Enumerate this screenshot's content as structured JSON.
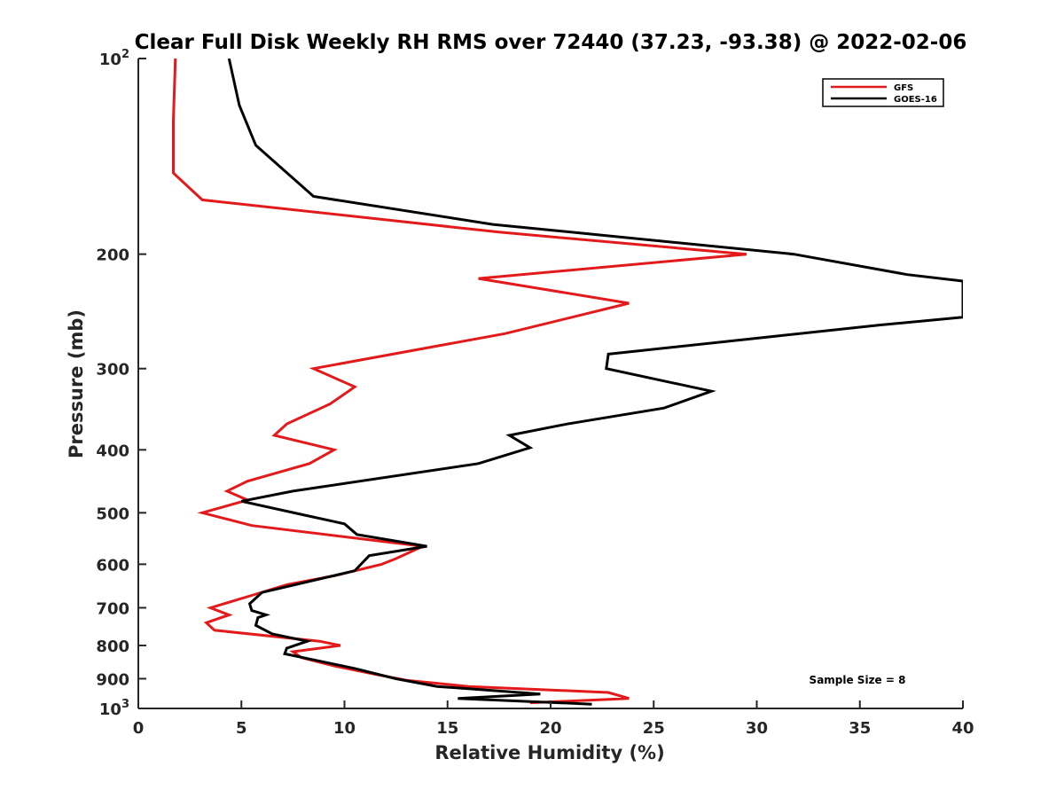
{
  "chart_data": {
    "type": "line",
    "title": "Clear Full Disk Weekly RH RMS over 72440 (37.23, -93.38) @ 2022-02-06",
    "xlabel": "Relative Humidity (%)",
    "ylabel": "Pressure (mb)",
    "xlim": [
      0,
      40
    ],
    "ylim": [
      100,
      1000
    ],
    "yscale": "log",
    "y_reversed": true,
    "grid": false,
    "legend_position": "top-right",
    "x_ticks": [
      0,
      5,
      10,
      15,
      20,
      25,
      30,
      35,
      40
    ],
    "y_ticks": [
      {
        "value": 100,
        "base": "10",
        "exp": "2"
      },
      {
        "value": 200,
        "label": "200"
      },
      {
        "value": 300,
        "label": "300"
      },
      {
        "value": 400,
        "label": "400"
      },
      {
        "value": 500,
        "label": "500"
      },
      {
        "value": 600,
        "label": "600"
      },
      {
        "value": 700,
        "label": "700"
      },
      {
        "value": 800,
        "label": "800"
      },
      {
        "value": 900,
        "label": "900"
      },
      {
        "value": 1000,
        "base": "10",
        "exp": "3"
      }
    ],
    "annotation": "Sample Size = 8",
    "series": [
      {
        "name": "GFS",
        "color": "#e31a1c",
        "points": [
          [
            1.8,
            100
          ],
          [
            1.7,
            125
          ],
          [
            1.7,
            150
          ],
          [
            3.1,
            165
          ],
          [
            17.5,
            185
          ],
          [
            29.5,
            200
          ],
          [
            16.5,
            218
          ],
          [
            23.8,
            238
          ],
          [
            17.8,
            265
          ],
          [
            8.5,
            300
          ],
          [
            10.5,
            320
          ],
          [
            9.3,
            340
          ],
          [
            7.2,
            365
          ],
          [
            6.6,
            380
          ],
          [
            9.5,
            400
          ],
          [
            8.3,
            420
          ],
          [
            5.3,
            447
          ],
          [
            4.3,
            463
          ],
          [
            5.3,
            478
          ],
          [
            3.1,
            500
          ],
          [
            5.5,
            523
          ],
          [
            13.8,
            563
          ],
          [
            12.5,
            588
          ],
          [
            11.8,
            600
          ],
          [
            9.5,
            625
          ],
          [
            7.2,
            645
          ],
          [
            5.5,
            670
          ],
          [
            3.5,
            700
          ],
          [
            4.4,
            718
          ],
          [
            3.3,
            738
          ],
          [
            3.7,
            758
          ],
          [
            8.8,
            788
          ],
          [
            9.8,
            800
          ],
          [
            7.5,
            818
          ],
          [
            7.9,
            835
          ],
          [
            9.5,
            860
          ],
          [
            11.5,
            886
          ],
          [
            13.0,
            905
          ],
          [
            16.0,
            925
          ],
          [
            22.8,
            945
          ],
          [
            23.8,
            965
          ],
          [
            19.0,
            980
          ]
        ]
      },
      {
        "name": "GOES-16",
        "color": "#000000",
        "points": [
          [
            4.4,
            100
          ],
          [
            4.9,
            118
          ],
          [
            5.7,
            136
          ],
          [
            8.5,
            163
          ],
          [
            17.2,
            180
          ],
          [
            31.8,
            200
          ],
          [
            37.3,
            215
          ],
          [
            40.0,
            220
          ],
          [
            40.0,
            250
          ],
          [
            36.0,
            257
          ],
          [
            22.8,
            285
          ],
          [
            22.7,
            300
          ],
          [
            27.8,
            325
          ],
          [
            25.5,
            345
          ],
          [
            20.8,
            365
          ],
          [
            18.0,
            380
          ],
          [
            19.0,
            397
          ],
          [
            16.5,
            420
          ],
          [
            7.5,
            463
          ],
          [
            5.0,
            480
          ],
          [
            7.8,
            502
          ],
          [
            10.0,
            520
          ],
          [
            10.6,
            540
          ],
          [
            14.0,
            563
          ],
          [
            11.2,
            582
          ],
          [
            10.5,
            614
          ],
          [
            6.0,
            663
          ],
          [
            5.4,
            690
          ],
          [
            5.5,
            707
          ],
          [
            6.2,
            718
          ],
          [
            5.8,
            725
          ],
          [
            5.7,
            745
          ],
          [
            6.5,
            768
          ],
          [
            8.2,
            788
          ],
          [
            7.2,
            808
          ],
          [
            7.1,
            824
          ],
          [
            8.2,
            838
          ],
          [
            10.5,
            868
          ],
          [
            12.5,
            900
          ],
          [
            14.5,
            925
          ],
          [
            19.5,
            950
          ],
          [
            15.5,
            965
          ],
          [
            22.0,
            985
          ]
        ]
      }
    ]
  }
}
